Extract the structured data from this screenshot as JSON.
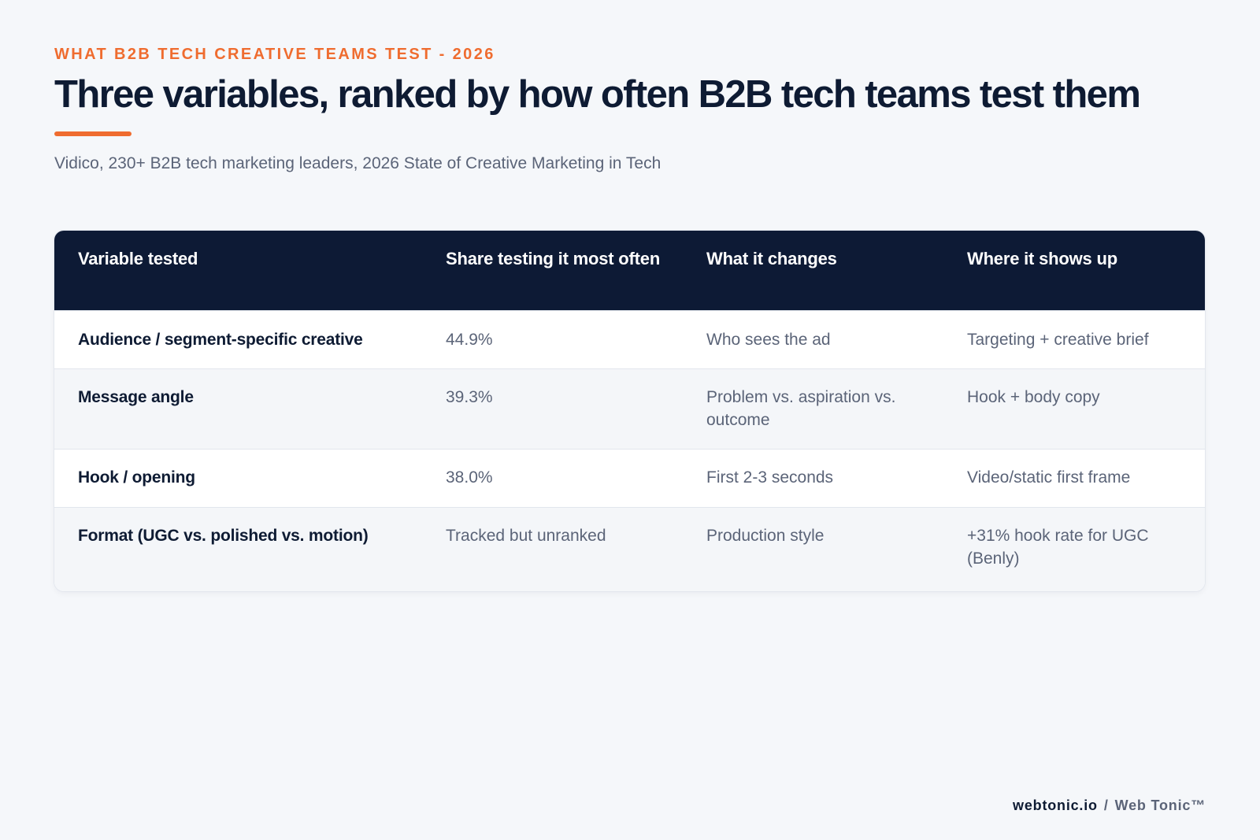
{
  "eyebrow": "WHAT B2B TECH CREATIVE TEAMS TEST - 2026",
  "title": "Three variables, ranked by how often B2B tech teams test them",
  "subtitle": "Vidico, 230+ B2B tech marketing leaders, 2026 State of Creative Marketing in Tech",
  "colors": {
    "accent": "#ef6c2f",
    "header_bg": "#0d1a35",
    "page_bg": "#f5f7fa",
    "title_text": "#0e1b33",
    "body_text": "#5b6478"
  },
  "chart_data": {
    "type": "table",
    "columns": [
      "Variable tested",
      "Share testing it most often",
      "What it changes",
      "Where it shows up"
    ],
    "rows": [
      [
        "Audience / segment-specific creative",
        "44.9%",
        "Who sees the ad",
        "Targeting + creative brief"
      ],
      [
        "Message angle",
        "39.3%",
        "Problem vs. aspiration vs. outcome",
        "Hook + body copy"
      ],
      [
        "Hook / opening",
        "38.0%",
        "First 2-3 seconds",
        "Video/static first frame"
      ],
      [
        "Format (UGC vs. polished vs. motion)",
        "Tracked but unranked",
        "Production style",
        "+31% hook rate for UGC (Benly)"
      ]
    ]
  },
  "footer": {
    "site": "webtonic.io",
    "separator": "/",
    "brand": "Web Tonic™"
  }
}
